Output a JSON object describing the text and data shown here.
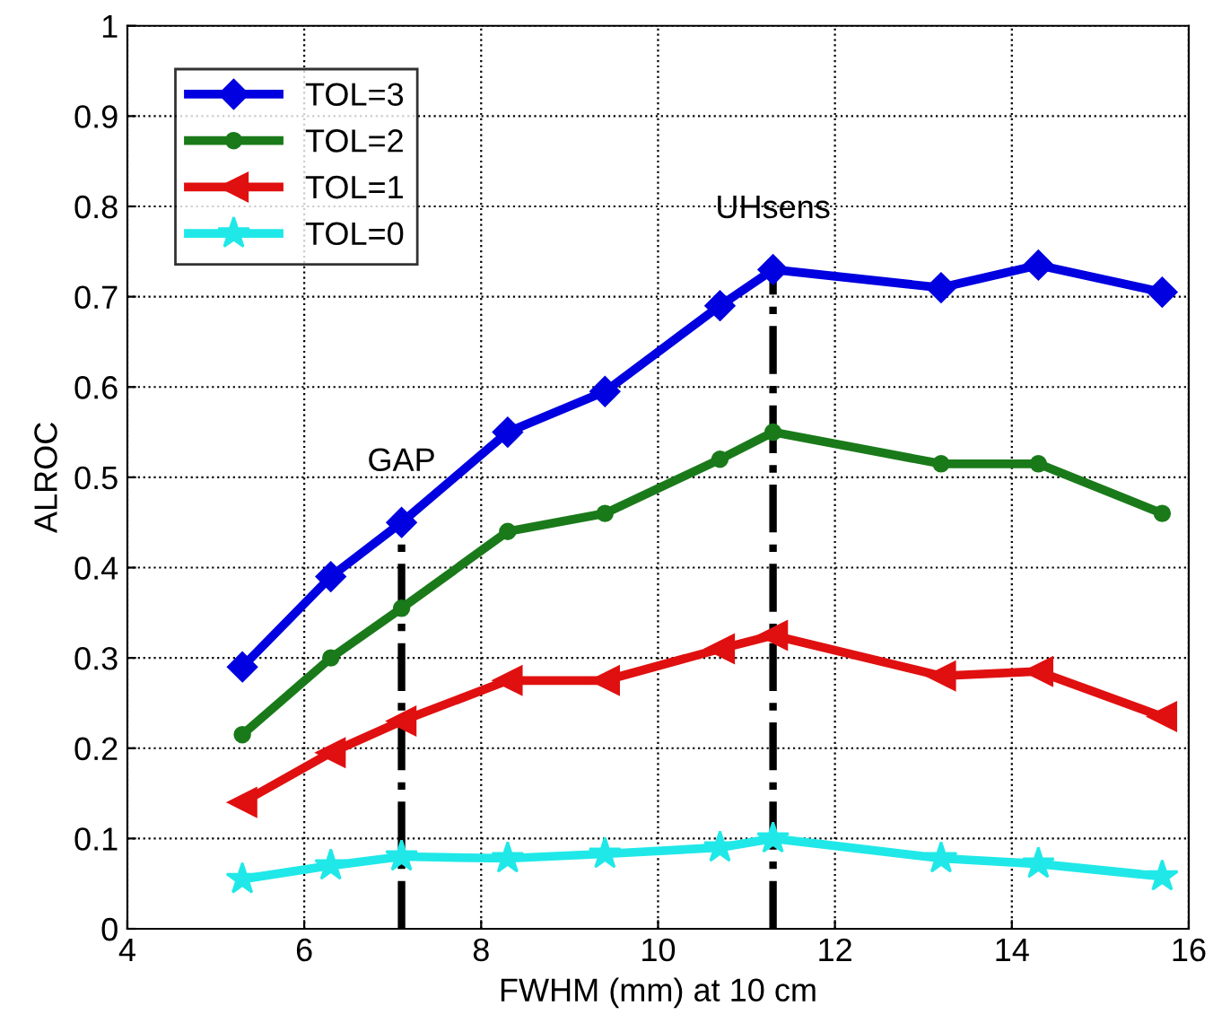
{
  "chart_data": {
    "type": "line",
    "xlabel": "FWHM (mm) at 10 cm",
    "ylabel": "ALROC",
    "x": [
      5.3,
      6.3,
      7.1,
      8.3,
      9.4,
      10.7,
      11.3,
      13.2,
      14.3,
      15.7
    ],
    "series": [
      {
        "name": "TOL=3",
        "color": "#0000e0",
        "marker": "diamond",
        "values": [
          0.29,
          0.39,
          0.45,
          0.55,
          0.595,
          0.69,
          0.73,
          0.71,
          0.735,
          0.705
        ]
      },
      {
        "name": "TOL=2",
        "color": "#1a7a1a",
        "marker": "circle",
        "values": [
          0.215,
          0.3,
          0.355,
          0.44,
          0.46,
          0.52,
          0.55,
          0.515,
          0.515,
          0.46
        ]
      },
      {
        "name": "TOL=1",
        "color": "#e01010",
        "marker": "triangle",
        "values": [
          0.14,
          0.195,
          0.23,
          0.275,
          0.275,
          0.31,
          0.325,
          0.28,
          0.285,
          0.235
        ]
      },
      {
        "name": "TOL=0",
        "color": "#20e8e8",
        "marker": "star",
        "values": [
          0.055,
          0.07,
          0.08,
          0.078,
          0.083,
          0.09,
          0.1,
          0.078,
          0.072,
          0.058
        ]
      }
    ],
    "ref_lines": [
      {
        "axis": "x",
        "value": 7.1,
        "label": "GAP",
        "color": "#000000",
        "line_style": "dashdot"
      },
      {
        "axis": "x",
        "value": 11.3,
        "label": "UHsens",
        "color": "#000000",
        "line_style": "dashdot"
      }
    ],
    "xlim": [
      4,
      16
    ],
    "xticks": [
      4,
      6,
      8,
      10,
      12,
      14,
      16
    ],
    "ylim": [
      0,
      1
    ],
    "yticks": [
      0,
      0.1,
      0.2,
      0.3,
      0.4,
      0.5,
      0.6,
      0.7,
      0.8,
      0.9,
      1
    ],
    "grid": true,
    "legend": "top left"
  }
}
